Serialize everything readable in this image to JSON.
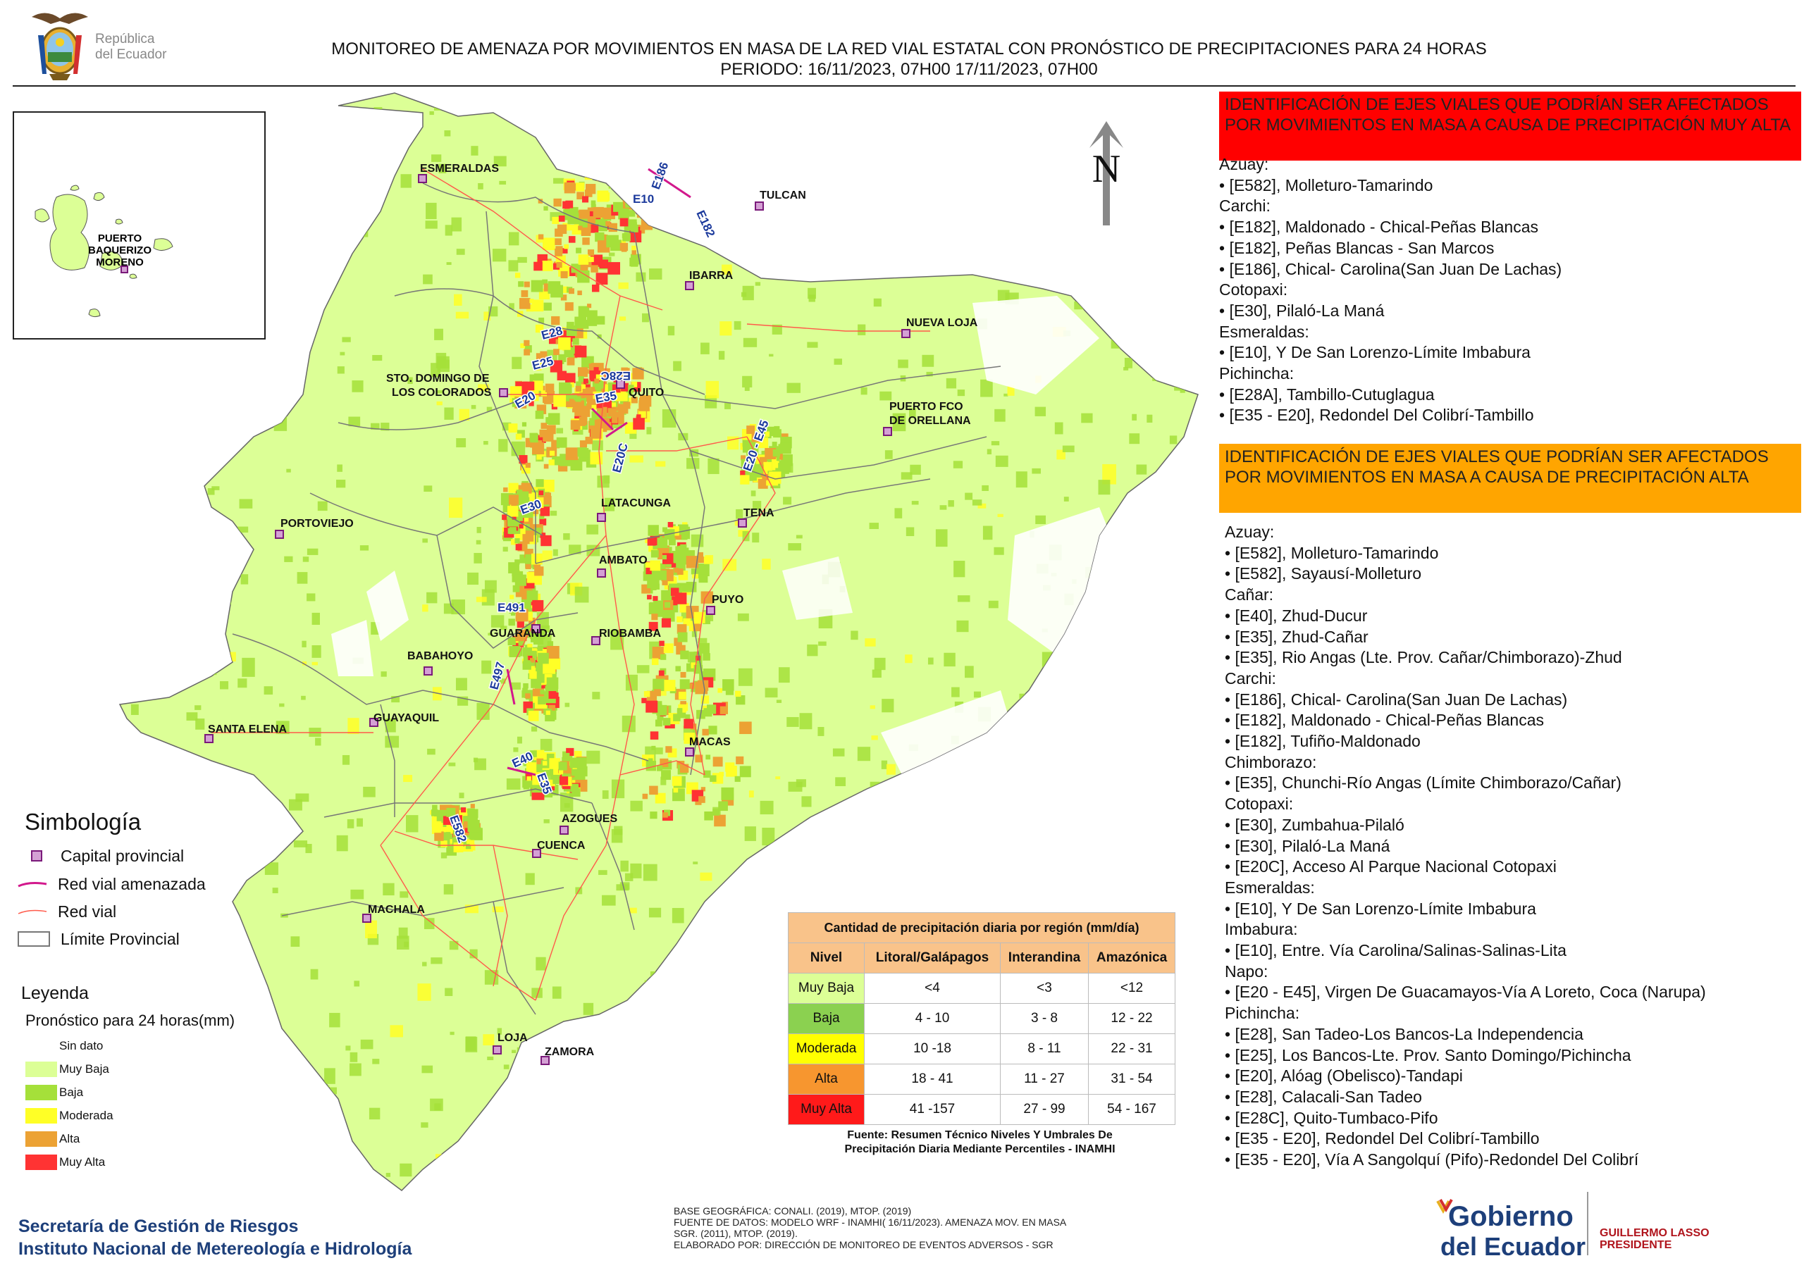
{
  "header": {
    "republic_line1": "República",
    "republic_line2": "del Ecuador",
    "title_line1": "MONITOREO DE AMENAZA POR MOVIMIENTOS EN MASA DE LA RED VIAL  ESTATAL  CON PRONÓSTICO  DE  PRECIPITACIONES PARA 24 HORAS",
    "title_line2": "PERIODO: 16/11/2023, 07H00 17/11/2023, 07H00"
  },
  "north_label": "N",
  "inset": {
    "city_label_line1": "PUERTO",
    "city_label_line2": "BAQUERIZO",
    "city_label_line3": "MORENO"
  },
  "cities": [
    {
      "name": "ESMERALDAS"
    },
    {
      "name": "TULCAN"
    },
    {
      "name": "IBARRA"
    },
    {
      "name": "NUEVA LOJA"
    },
    {
      "name": "STO. DOMINGO DE"
    },
    {
      "name": "LOS COLORADOS"
    },
    {
      "name": "QUITO"
    },
    {
      "name": "PUERTO FCO"
    },
    {
      "name": "DE ORELLANA"
    },
    {
      "name": "LATACUNGA"
    },
    {
      "name": "TENA"
    },
    {
      "name": "PORTOVIEJO"
    },
    {
      "name": "AMBATO"
    },
    {
      "name": "PUYO"
    },
    {
      "name": "GUARANDA"
    },
    {
      "name": "RIOBAMBA"
    },
    {
      "name": "BABAHOYO"
    },
    {
      "name": "SANTA ELENA"
    },
    {
      "name": "GUAYAQUIL"
    },
    {
      "name": "MACAS"
    },
    {
      "name": "AZOGUES"
    },
    {
      "name": "CUENCA"
    },
    {
      "name": "MACHALA"
    },
    {
      "name": "LOJA"
    },
    {
      "name": "ZAMORA"
    }
  ],
  "road_labels": [
    "E10",
    "E182",
    "E186",
    "E28",
    "E25",
    "E28C",
    "E20",
    "E35",
    "E20C",
    "E20 - E45",
    "E30",
    "E491",
    "E497",
    "E40",
    "E35",
    "E582"
  ],
  "red_panel": {
    "header": "IDENTIFICACIÓN DE EJES VIALES QUE PODRÍAN SER AFECTADOS POR MOVIMIENTOS EN MASA A CAUSA DE PRECIPITACIÓN MUY ALTA",
    "lines": [
      {
        "type": "prov",
        "text": "Azuay:"
      },
      {
        "type": "item",
        "text": "[E582], Molleturo-Tamarindo"
      },
      {
        "type": "prov",
        "text": "Carchi:"
      },
      {
        "type": "item",
        "text": "[E182], Maldonado - Chical-Peñas Blancas"
      },
      {
        "type": "item",
        "text": "[E182], Peñas Blancas - San Marcos"
      },
      {
        "type": "item",
        "text": "[E186], Chical- Carolina(San Juan De Lachas)"
      },
      {
        "type": "prov",
        "text": "Cotopaxi:"
      },
      {
        "type": "item",
        "text": "[E30], Pilaló-La Maná"
      },
      {
        "type": "prov",
        "text": "Esmeraldas:"
      },
      {
        "type": "item",
        "text": "[E10], Y De San Lorenzo-Límite Imbabura"
      },
      {
        "type": "prov",
        "text": "Pichincha:"
      },
      {
        "type": "item",
        "text": "[E28A], Tambillo-Cutuglagua"
      },
      {
        "type": "item",
        "text": "[E35 - E20], Redondel Del Colibrí-Tambillo"
      }
    ]
  },
  "orange_panel": {
    "header": "IDENTIFICACIÓN DE EJES VIALES QUE PODRÍAN SER AFECTADOS POR MOVIMIENTOS EN MASA A CAUSA DE PRECIPITACIÓN  ALTA",
    "lines": [
      {
        "type": "prov",
        "text": "Azuay:"
      },
      {
        "type": "item",
        "text": "[E582], Molleturo-Tamarindo"
      },
      {
        "type": "item",
        "text": "[E582], Sayausí-Molleturo"
      },
      {
        "type": "prov",
        "text": "Cañar:"
      },
      {
        "type": "item",
        "text": "[E40], Zhud-Ducur"
      },
      {
        "type": "item",
        "text": "[E35], Zhud-Cañar"
      },
      {
        "type": "item",
        "text": "[E35], Rio Angas (Lte. Prov. Cañar/Chimborazo)-Zhud"
      },
      {
        "type": "prov",
        "text": "Carchi:"
      },
      {
        "type": "item",
        "text": "[E186], Chical- Carolina(San Juan De Lachas)"
      },
      {
        "type": "item",
        "text": "[E182], Maldonado - Chical-Peñas Blancas"
      },
      {
        "type": "item",
        "text": "[E182], Tufiño-Maldonado"
      },
      {
        "type": "prov",
        "text": "Chimborazo:"
      },
      {
        "type": "item",
        "text": "[E35], Chunchi-Río Angas (Límite Chimborazo/Cañar)"
      },
      {
        "type": "prov",
        "text": "Cotopaxi:"
      },
      {
        "type": "item",
        "text": "[E30], Zumbahua-Pilaló"
      },
      {
        "type": "item",
        "text": "[E30], Pilaló-La Maná"
      },
      {
        "type": "item",
        "text": "[E20C], Acceso Al Parque Nacional Cotopaxi"
      },
      {
        "type": "prov",
        "text": "Esmeraldas:"
      },
      {
        "type": "item",
        "text": "[E10], Y De San Lorenzo-Límite Imbabura"
      },
      {
        "type": "prov",
        "text": "Imbabura:"
      },
      {
        "type": "item",
        "text": "[E10], Entre. Vía Carolina/Salinas-Salinas-Lita"
      },
      {
        "type": "prov",
        "text": "Napo:"
      },
      {
        "type": "item",
        "text": "[E20 - E45], Virgen De Guacamayos-Vía A Loreto, Coca (Narupa)"
      },
      {
        "type": "prov",
        "text": "Pichincha:"
      },
      {
        "type": "item",
        "text": "[E28], San Tadeo-Los Bancos-La Independencia"
      },
      {
        "type": "item",
        "text": "[E25], Los Bancos-Lte. Prov. Santo Domingo/Pichincha"
      },
      {
        "type": "item",
        "text": "[E20], Alóag (Obelisco)-Tandapi"
      },
      {
        "type": "item",
        "text": "[E28], Calacali-San Tadeo"
      },
      {
        "type": "item",
        "text": "[E28C], Quito-Tumbaco-Pifo"
      },
      {
        "type": "item",
        "text": "[E35 - E20], Redondel Del Colibrí-Tambillo"
      },
      {
        "type": "item",
        "text": "[E35 - E20], Vía A Sangolquí (Pifo)-Redondel Del Colibrí"
      }
    ]
  },
  "symbology": {
    "title": "Simbología",
    "capital": "Capital provincial",
    "threatened_road": "Red vial amenazada",
    "road": "Red vial",
    "boundary": "Límite Provincial"
  },
  "legend": {
    "title": "Leyenda",
    "subtitle": "Pronóstico para 24 horas(mm)",
    "items": [
      {
        "label": "Sin dato",
        "color": "#ffffff"
      },
      {
        "label": "Muy Baja",
        "color": "#dcff96"
      },
      {
        "label": "Baja",
        "color": "#a5e03a"
      },
      {
        "label": "Moderada",
        "color": "#ffff26"
      },
      {
        "label": "Alta",
        "color": "#eca234"
      },
      {
        "label": "Muy Alta",
        "color": "#ff3333"
      }
    ]
  },
  "precip_table": {
    "title": "Cantidad de precipitación diaria por región (mm/día)",
    "headers": [
      "Nivel",
      "Litoral/Galápagos",
      "Interandina",
      "Amazónica"
    ],
    "rows": [
      {
        "level": "Muy Baja",
        "color": "#dcff96",
        "litoral": "<4",
        "interandina": "<3",
        "amazonica": "<12"
      },
      {
        "level": "Baja",
        "color": "#8bd150",
        "litoral": "4 - 10",
        "interandina": "3 - 8",
        "amazonica": "12 - 22"
      },
      {
        "level": "Moderada",
        "color": "#ffff00",
        "litoral": "10 -18",
        "interandina": "8 - 11",
        "amazonica": "22 - 31"
      },
      {
        "level": "Alta",
        "color": "#f7962f",
        "litoral": "18 - 41",
        "interandina": "11 - 27",
        "amazonica": "31 - 54"
      },
      {
        "level": "Muy Alta",
        "color": "#ff1a1a",
        "litoral": "41 -157",
        "interandina": "27 - 99",
        "amazonica": "54 - 167"
      }
    ],
    "source_line1": "Fuente: Resumen Técnico Niveles Y Umbrales De",
    "source_line2": "Precipitación Diaria Mediante Percentiles - INAMHI"
  },
  "footer": {
    "org_line1": "Secretaría de Gestión de Riesgos",
    "org_line2": "Instituto Nacional de Metereología e Hidrología",
    "meta_line1": "BASE GEOGRÁFICA: CONALI. (2019), MTOP. (2019)",
    "meta_line2": "FUENTE DE DATOS: MODELO WRF - INAMHI( 16/11/2023).  AMENAZA MOV. EN MASA",
    "meta_line3": "SGR. (2011), MTOP. (2019).",
    "meta_line4": "ELABORADO POR: DIRECCIÓN DE MONITOREO DE EVENTOS ADVERSOS - SGR",
    "gob_line1": "Gobierno",
    "gob_line2": "del Ecuador",
    "president_name": "GUILLERMO LASSO",
    "president_title": "PRESIDENTE"
  }
}
